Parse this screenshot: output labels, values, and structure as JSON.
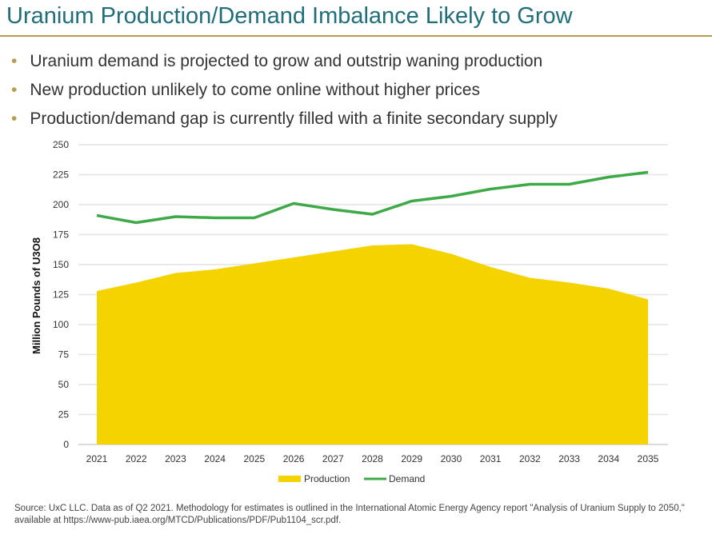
{
  "title": "Uranium Production/Demand Imbalance Likely to Grow",
  "bullets": [
    "Uranium demand is projected to grow and outstrip waning production",
    "New production unlikely to come online without higher prices",
    "Production/demand gap is currently filled with a finite secondary supply"
  ],
  "source": "Source: UxC LLC. Data as of Q2 2021. Methodology for estimates is outlined in the International Atomic Energy Agency report \"Analysis of Uranium Supply to 2050,\" available at https://www-pub.iaea.org/MTCD/Publications/PDF/Pub1104_scr.pdf.",
  "colors": {
    "production": "#f5d300",
    "demand": "#3daa47",
    "accent": "#b89d4f",
    "title": "#1f6e7a"
  },
  "chart_data": {
    "type": "area",
    "title": "",
    "ylabel": "Million Pounds of U3O8",
    "xlabel": "",
    "ylim": [
      0,
      250
    ],
    "yticks": [
      0,
      25,
      50,
      75,
      100,
      125,
      150,
      175,
      200,
      225,
      250
    ],
    "categories": [
      "2021",
      "2022",
      "2023",
      "2024",
      "2025",
      "2026",
      "2027",
      "2028",
      "2029",
      "2030",
      "2031",
      "2032",
      "2033",
      "2034",
      "2035"
    ],
    "series": [
      {
        "name": "Production",
        "type": "area",
        "values": [
          128,
          135,
          143,
          146,
          151,
          156,
          161,
          166,
          167,
          159,
          148,
          139,
          135,
          130,
          121
        ]
      },
      {
        "name": "Demand",
        "type": "line",
        "values": [
          191,
          185,
          190,
          189,
          189,
          201,
          196,
          192,
          203,
          207,
          213,
          217,
          217,
          223,
          227
        ]
      }
    ],
    "legend": "bottom",
    "grid": true
  }
}
